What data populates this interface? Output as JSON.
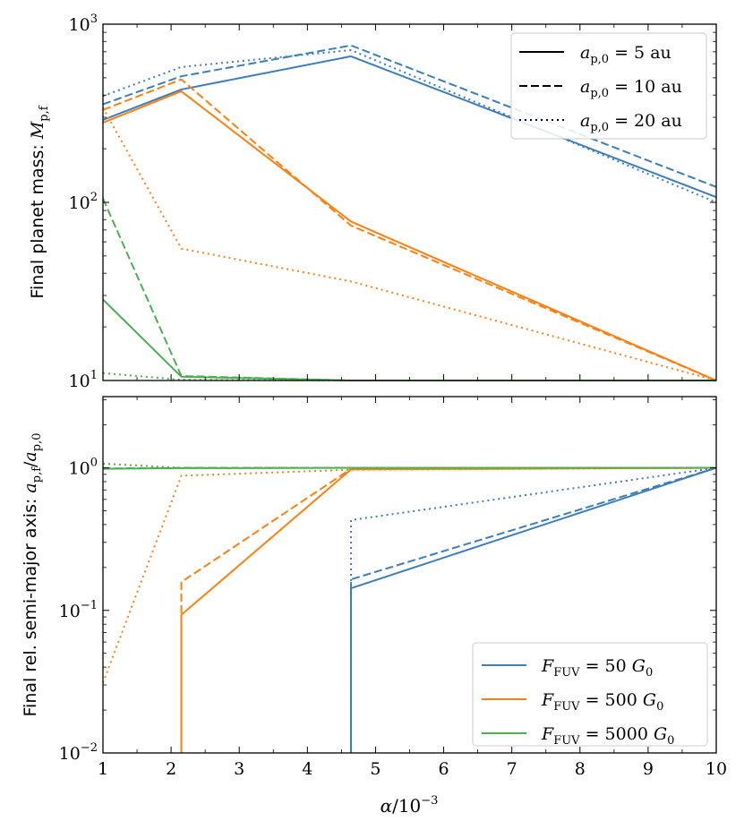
{
  "chart_data": [
    {
      "type": "line",
      "yscale": "log",
      "ylabel_text": "Final planet mass: ",
      "ylabel_symbol": "M",
      "ylabel_sub": "p,f",
      "xlim": [
        1,
        10
      ],
      "ylim": [
        10,
        1000
      ],
      "y_ticks": [
        {
          "value": 10,
          "exp": "1"
        },
        {
          "value": 100,
          "exp": "2"
        },
        {
          "value": 1000,
          "exp": "3"
        }
      ],
      "x": [
        1,
        2.15,
        4.64,
        10
      ],
      "series": [
        {
          "name": "F_FUV = 50 G0, a_p,0 = 5 au",
          "color": "#3a7ebf",
          "style": "solid",
          "values": [
            290,
            430,
            660,
            107
          ]
        },
        {
          "name": "F_FUV = 50 G0, a_p,0 = 10 au",
          "color": "#3a7ebf",
          "style": "dashed",
          "values": [
            355,
            510,
            760,
            122
          ]
        },
        {
          "name": "F_FUV = 50 G0, a_p,0 = 20 au",
          "color": "#3a7ebf",
          "style": "dotted",
          "values": [
            395,
            575,
            715,
            100
          ]
        },
        {
          "name": "F_FUV = 500 G0, a_p,0 = 5 au",
          "color": "#ff7f0e",
          "style": "solid",
          "values": [
            280,
            420,
            78,
            10
          ]
        },
        {
          "name": "F_FUV = 500 G0, a_p,0 = 10 au",
          "color": "#ff7f0e",
          "style": "dashed",
          "values": [
            330,
            490,
            74,
            10
          ]
        },
        {
          "name": "F_FUV = 500 G0, a_p,0 = 20 au",
          "color": "#ff7f0e",
          "style": "dotted",
          "values": [
            340,
            55,
            36,
            10
          ]
        },
        {
          "name": "F_FUV = 5000 G0, a_p,0 = 5 au",
          "color": "#4caf50",
          "style": "solid",
          "values": [
            28.5,
            10.5,
            10,
            10
          ]
        },
        {
          "name": "F_FUV = 5000 G0, a_p,0 = 10 au",
          "color": "#4caf50",
          "style": "dashed",
          "values": [
            105,
            10.6,
            10,
            10
          ]
        },
        {
          "name": "F_FUV = 5000 G0, a_p,0 = 20 au",
          "color": "#4caf50",
          "style": "dotted",
          "values": [
            11,
            10.1,
            10,
            10
          ]
        }
      ],
      "legend": {
        "position": "top-right",
        "entries": [
          {
            "style": "solid",
            "label": "= 5 au"
          },
          {
            "style": "dashed",
            "label": "= 10 au"
          },
          {
            "style": "dotted",
            "label": "= 20 au"
          }
        ],
        "symbol": "a",
        "sub": "p,0"
      }
    },
    {
      "type": "line",
      "yscale": "log",
      "ylabel_text": "Final rel. semi-major axis: ",
      "ylabel_symbol_num": "a",
      "ylabel_sub_num": "p,f",
      "ylabel_symbol_den": "a",
      "ylabel_sub_den": "p,0",
      "xlabel_symbol": "α",
      "xlabel_rest": "/10",
      "xlabel_exp": "−3",
      "xlim": [
        1,
        10
      ],
      "ylim": [
        0.01,
        3.16
      ],
      "x_ticks": [
        "1",
        "2",
        "3",
        "4",
        "5",
        "6",
        "7",
        "8",
        "9",
        "10"
      ],
      "y_ticks": [
        {
          "value": 0.01,
          "exp": "−2"
        },
        {
          "value": 0.1,
          "exp": "−1"
        },
        {
          "value": 1,
          "exp": "0"
        }
      ],
      "series": [
        {
          "name": "F_FUV = 50 G0, a_p,0 = 5 au",
          "color": "#3a7ebf",
          "style": "solid",
          "points": [
            [
              4.64,
              0.01
            ],
            [
              4.64,
              0.143
            ],
            [
              10,
              1.0
            ]
          ]
        },
        {
          "name": "F_FUV = 50 G0, a_p,0 = 10 au",
          "color": "#3a7ebf",
          "style": "dashed",
          "points": [
            [
              4.64,
              0.01
            ],
            [
              4.64,
              0.165
            ],
            [
              10,
              1.0
            ]
          ]
        },
        {
          "name": "F_FUV = 50 G0, a_p,0 = 20 au",
          "color": "#3a7ebf",
          "style": "dotted",
          "points": [
            [
              4.64,
              0.01
            ],
            [
              4.64,
              0.43
            ],
            [
              10,
              1.0
            ]
          ]
        },
        {
          "name": "F_FUV = 500 G0, a_p,0 = 5 au",
          "color": "#ff7f0e",
          "style": "solid",
          "points": [
            [
              2.15,
              0.01
            ],
            [
              2.15,
              0.093
            ],
            [
              4.64,
              0.975
            ],
            [
              10,
              1.0
            ]
          ]
        },
        {
          "name": "F_FUV = 500 G0, a_p,0 = 10 au",
          "color": "#ff7f0e",
          "style": "dashed",
          "points": [
            [
              2.15,
              0.01
            ],
            [
              2.15,
              0.158
            ],
            [
              4.64,
              0.985
            ],
            [
              10,
              1.0
            ]
          ]
        },
        {
          "name": "F_FUV = 500 G0, a_p,0 = 20 au",
          "color": "#ff7f0e",
          "style": "dotted",
          "points": [
            [
              1,
              0.031
            ],
            [
              2.15,
              0.88
            ],
            [
              4.64,
              0.97
            ],
            [
              10,
              1.0
            ]
          ]
        },
        {
          "name": "F_FUV = 5000 G0, a_p,0 = 5 au",
          "color": "#4caf50",
          "style": "solid",
          "points": [
            [
              1,
              0.985
            ],
            [
              2.15,
              0.995
            ],
            [
              4.64,
              1.0
            ],
            [
              10,
              1.0
            ]
          ]
        },
        {
          "name": "F_FUV = 5000 G0, a_p,0 = 10 au",
          "color": "#4caf50",
          "style": "dashed",
          "points": [
            [
              1,
              0.99
            ],
            [
              2.15,
              1.0
            ],
            [
              4.64,
              1.0
            ],
            [
              10,
              1.0
            ]
          ]
        },
        {
          "name": "F_FUV = 5000 G0, a_p,0 = 20 au",
          "color": "#4caf50",
          "style": "dotted",
          "points": [
            [
              1,
              1.07
            ],
            [
              2.15,
              1.0
            ],
            [
              4.64,
              1.0
            ],
            [
              10,
              1.0
            ]
          ]
        }
      ],
      "legend": {
        "position": "bottom-right",
        "symbol": "F",
        "sub": "FUV",
        "unit_symbol": "G",
        "unit_sub": "0",
        "entries": [
          {
            "color": "#3a7ebf",
            "value": "50"
          },
          {
            "color": "#ff7f0e",
            "value": "500"
          },
          {
            "color": "#4caf50",
            "value": "5000"
          }
        ]
      }
    }
  ]
}
